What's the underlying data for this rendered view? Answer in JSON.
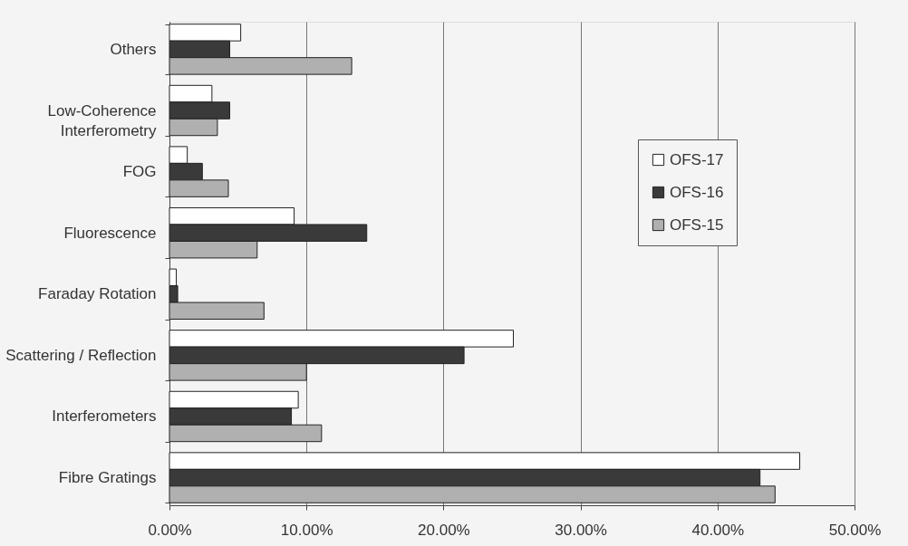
{
  "chart_data": {
    "type": "bar",
    "orientation": "horizontal",
    "categories": [
      "Others",
      "Low-Coherence Interferometry",
      "FOG",
      "Fluorescence",
      "Faraday Rotation",
      "Scattering / Reflection",
      "Interferometers",
      "Fibre Gratings"
    ],
    "series": [
      {
        "name": "OFS-17",
        "color": "#ffffff",
        "values": [
          5.2,
          3.1,
          1.3,
          9.1,
          0.5,
          25.1,
          9.4,
          46.0
        ]
      },
      {
        "name": "OFS-16",
        "color": "#3a3a3a",
        "values": [
          4.4,
          4.4,
          2.4,
          14.4,
          0.6,
          21.5,
          8.9,
          43.1
        ]
      },
      {
        "name": "OFS-15",
        "color": "#b0b0b0",
        "values": [
          13.3,
          3.5,
          4.3,
          6.4,
          6.9,
          10.0,
          11.1,
          44.2
        ]
      }
    ],
    "xlim": [
      0,
      50
    ],
    "xticks": [
      {
        "value": 0,
        "label": "0.00%"
      },
      {
        "value": 10,
        "label": "10.00%"
      },
      {
        "value": 20,
        "label": "20.00%"
      },
      {
        "value": 30,
        "label": "30.00%"
      },
      {
        "value": 40,
        "label": "40.00%"
      },
      {
        "value": 50,
        "label": "50.00%"
      }
    ],
    "grid": "x",
    "legend": "top right"
  }
}
